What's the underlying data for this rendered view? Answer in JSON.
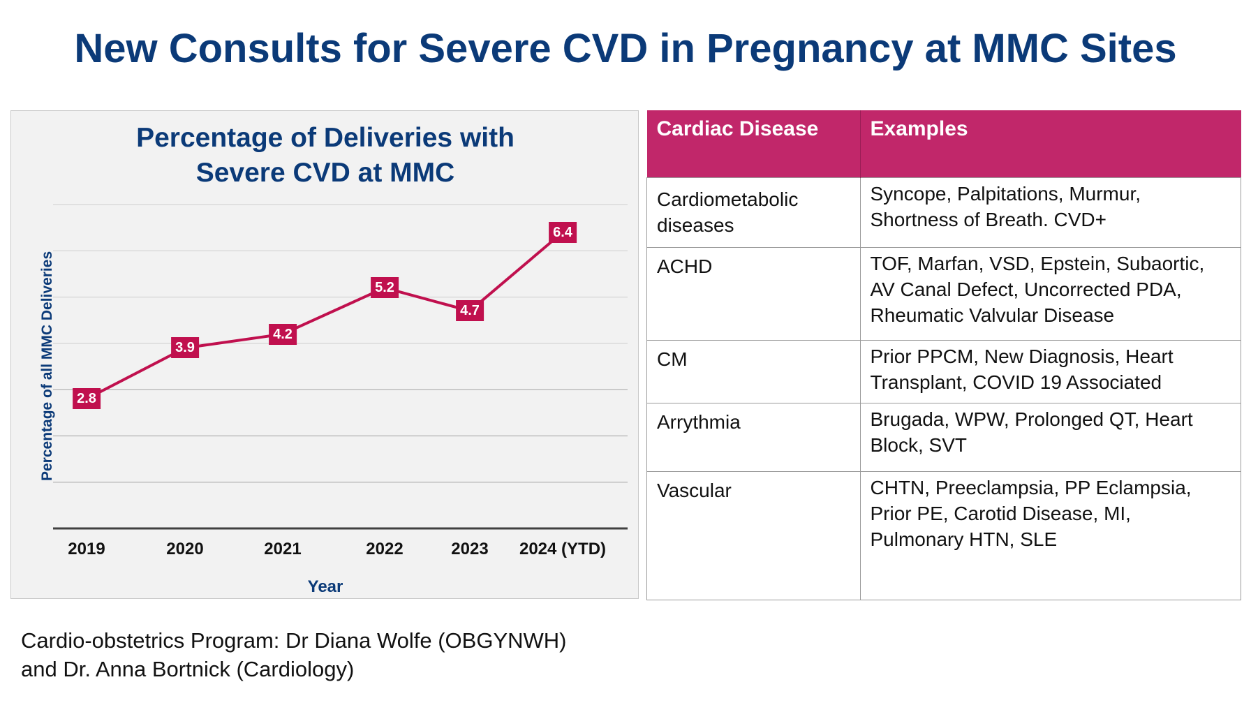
{
  "slide": {
    "title": "New Consults for Severe CVD in Pregnancy at MMC Sites",
    "footer_line1": "Cardio-obstetrics Program: Dr Diana Wolfe (OBGYNWH)",
    "footer_line2": "and Dr. Anna Bortnick (Cardiology)"
  },
  "colors": {
    "title_blue": "#0b3a78",
    "series": "#c0104e",
    "table_header": "#c1276a",
    "panel_bg": "#f2f2f2"
  },
  "chart_data": {
    "type": "line",
    "title_line1": "Percentage of Deliveries with",
    "title_line2": "Severe CVD at MMC",
    "xlabel": "Year",
    "ylabel": "Percentage of all MMC Deliveries",
    "categories": [
      "2019",
      "2020",
      "2021",
      "2022",
      "2023",
      "2024 (YTD)"
    ],
    "values": [
      2.8,
      3.9,
      4.2,
      5.2,
      4.7,
      6.4
    ],
    "data_labels": [
      "2.8",
      "3.9",
      "4.2",
      "5.2",
      "4.7",
      "6.4"
    ],
    "ylim": [
      0,
      7
    ],
    "yticks_shown": false,
    "grid": true,
    "legend": "none",
    "series": [
      {
        "name": "Percentage of Deliveries with Severe CVD",
        "values": [
          2.8,
          3.9,
          4.2,
          5.2,
          4.7,
          6.4
        ]
      }
    ]
  },
  "table": {
    "headers": [
      "Cardiac Disease",
      "Examples"
    ],
    "rows": [
      {
        "disease_line1": "Cardiometabolic",
        "disease_line2": "diseases",
        "examples": [
          "Syncope, Palpitations, Murmur,",
          "Shortness of Breath. CVD+"
        ]
      },
      {
        "disease_line1": "ACHD",
        "disease_line2": "",
        "examples": [
          "TOF, Marfan, VSD, Epstein, Subaortic,",
          "AV Canal Defect, Uncorrected PDA,",
          "Rheumatic Valvular Disease"
        ]
      },
      {
        "disease_line1": "CM",
        "disease_line2": "",
        "examples": [
          "Prior PPCM, New Diagnosis, Heart",
          "Transplant, COVID 19 Associated"
        ]
      },
      {
        "disease_line1": "Arrythmia",
        "disease_line2": "",
        "examples": [
          "Brugada, WPW, Prolonged QT, Heart",
          "Block, SVT"
        ]
      },
      {
        "disease_line1": "Vascular",
        "disease_line2": "",
        "examples": [
          "CHTN, Preeclampsia, PP Eclampsia,",
          "Prior PE, Carotid Disease, MI,",
          "Pulmonary HTN, SLE"
        ]
      }
    ]
  }
}
